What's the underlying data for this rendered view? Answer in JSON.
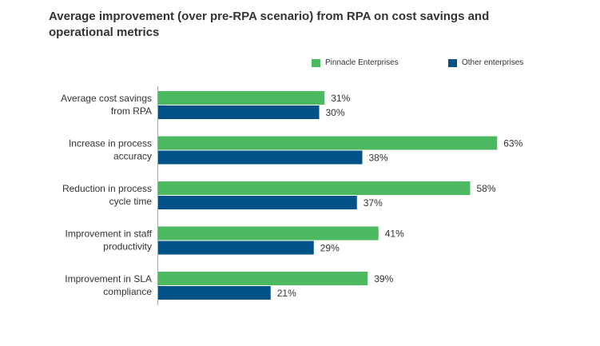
{
  "chart_data": {
    "type": "bar",
    "orientation": "horizontal",
    "title": "Average improvement (over pre-RPA scenario) from RPA on cost savings and operational metrics",
    "categories": [
      [
        "Average cost savings",
        "from RPA"
      ],
      [
        "Increase in process",
        "accuracy"
      ],
      [
        "Reduction in process",
        "cycle time"
      ],
      [
        "Improvement in staff",
        "productivity"
      ],
      [
        "Improvement in SLA",
        "compliance"
      ]
    ],
    "series": [
      {
        "name": "Pinnacle Enterprises",
        "color": "#4cb961",
        "values": [
          31,
          63,
          58,
          41,
          39
        ]
      },
      {
        "name": "Other enterprises",
        "color": "#005289",
        "values": [
          30,
          38,
          37,
          29,
          21
        ]
      }
    ],
    "value_suffix": "%",
    "xlim": [
      0,
      70
    ],
    "xlabel": "",
    "ylabel": "",
    "grid": false,
    "legend_position": "top-right"
  }
}
